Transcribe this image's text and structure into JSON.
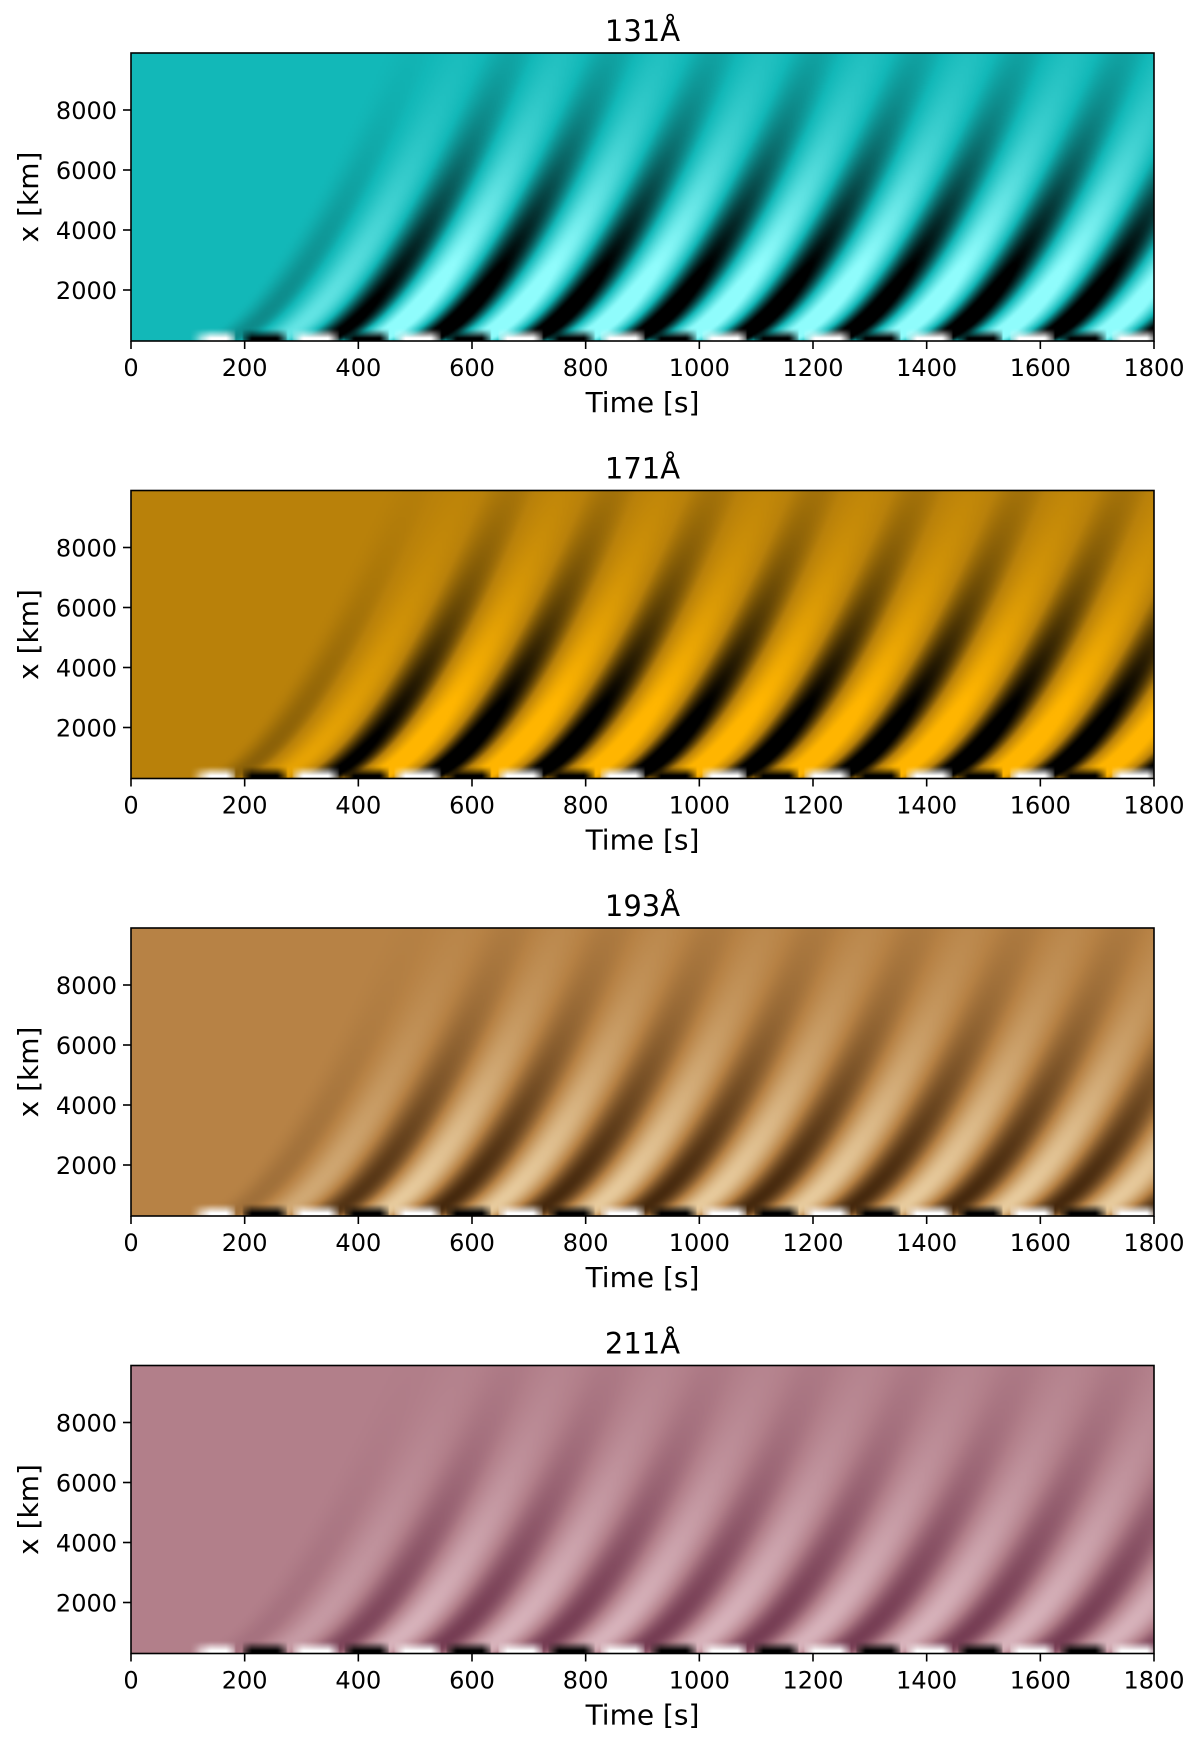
{
  "chart_data": [
    {
      "type": "heatmap",
      "title": "131Å",
      "xlabel": "Time [s]",
      "ylabel": "x [km]",
      "xlim": [
        0,
        1800
      ],
      "ylim": [
        300,
        9900
      ],
      "xticks": [
        0,
        200,
        400,
        600,
        800,
        1000,
        1200,
        1400,
        1600,
        1800
      ],
      "yticks": [
        2000,
        4000,
        6000,
        8000
      ],
      "colors": {
        "background": "#12b8b8",
        "bright": "#8ffcfc",
        "dark": "#000000",
        "highlight": "#ffffff"
      },
      "wave_onset_s": 100,
      "wave_period_s": 180,
      "contrast": 1.0
    },
    {
      "type": "heatmap",
      "title": "171Å",
      "xlabel": "Time [s]",
      "ylabel": "x [km]",
      "xlim": [
        0,
        1800
      ],
      "ylim": [
        300,
        9900
      ],
      "xticks": [
        0,
        200,
        400,
        600,
        800,
        1000,
        1200,
        1400,
        1600,
        1800
      ],
      "yticks": [
        2000,
        4000,
        6000,
        8000
      ],
      "colors": {
        "background": "#b9810a",
        "bright": "#ffb500",
        "dark": "#000000",
        "highlight": "#ffffff"
      },
      "wave_onset_s": 100,
      "wave_period_s": 180,
      "contrast": 1.0
    },
    {
      "type": "heatmap",
      "title": "193Å",
      "xlabel": "Time [s]",
      "ylabel": "x [km]",
      "xlim": [
        0,
        1800
      ],
      "ylim": [
        300,
        9900
      ],
      "xticks": [
        0,
        200,
        400,
        600,
        800,
        1000,
        1200,
        1400,
        1600,
        1800
      ],
      "yticks": [
        2000,
        4000,
        6000,
        8000
      ],
      "colors": {
        "background": "#b78245",
        "bright": "#f3dcb2",
        "dark": "#2a1300",
        "highlight": "#ffffff"
      },
      "wave_onset_s": 100,
      "wave_period_s": 180,
      "contrast": 0.65
    },
    {
      "type": "heatmap",
      "title": "211Å",
      "xlabel": "Time [s]",
      "ylabel": "x [km]",
      "xlim": [
        0,
        1800
      ],
      "ylim": [
        300,
        9900
      ],
      "xticks": [
        0,
        200,
        400,
        600,
        800,
        1000,
        1200,
        1400,
        1600,
        1800
      ],
      "yticks": [
        2000,
        4000,
        6000,
        8000
      ],
      "colors": {
        "background": "#b27f8a",
        "bright": "#e9cbd2",
        "dark": "#5a1e3a",
        "highlight": "#ffffff"
      },
      "wave_onset_s": 100,
      "wave_period_s": 180,
      "contrast": 0.55
    }
  ]
}
